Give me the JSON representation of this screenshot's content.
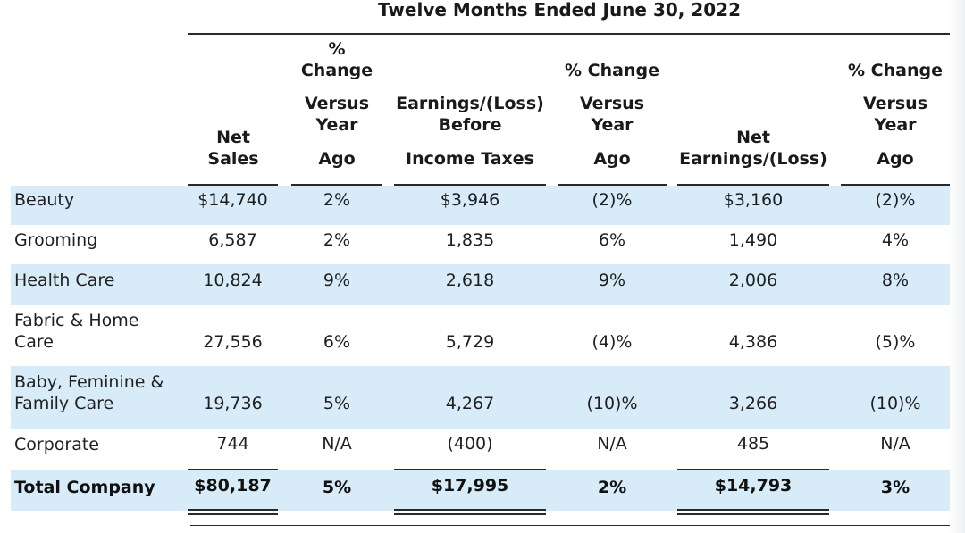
{
  "table": {
    "period_title": "Twelve Months Ended June 30, 2022",
    "headers": {
      "net_sales": [
        "Net",
        "Sales"
      ],
      "change_sales": [
        "%",
        "Change",
        "Versus",
        "Year",
        "Ago"
      ],
      "ebit": [
        "Earnings/(Loss)",
        "Before",
        "Income Taxes"
      ],
      "change_ebit": [
        "% Change",
        "Versus",
        "Year",
        "Ago"
      ],
      "net_earnings": [
        "Net",
        "Earnings/(Loss)"
      ],
      "change_earnings": [
        "% Change",
        "Versus",
        "Year",
        "Ago"
      ]
    },
    "rows": [
      {
        "segment": "Beauty",
        "net_sales": "$14,740",
        "change_sales": "2%",
        "ebit": "$3,946",
        "change_ebit": "(2)%",
        "net_earnings": "$3,160",
        "change_earnings": "(2)%"
      },
      {
        "segment": "Grooming",
        "net_sales": "6,587",
        "change_sales": "2%",
        "ebit": "1,835",
        "change_ebit": "6%",
        "net_earnings": "1,490",
        "change_earnings": "4%"
      },
      {
        "segment": "Health Care",
        "net_sales": "10,824",
        "change_sales": "9%",
        "ebit": "2,618",
        "change_ebit": "9%",
        "net_earnings": "2,006",
        "change_earnings": "8%"
      },
      {
        "segment": "Fabric & Home\nCare",
        "net_sales": "27,556",
        "change_sales": "6%",
        "ebit": "5,729",
        "change_ebit": "(4)%",
        "net_earnings": "4,386",
        "change_earnings": "(5)%"
      },
      {
        "segment": "Baby, Feminine &\nFamily Care",
        "net_sales": "19,736",
        "change_sales": "5%",
        "ebit": "4,267",
        "change_ebit": "(10)%",
        "net_earnings": "3,266",
        "change_earnings": "(10)%"
      },
      {
        "segment": "Corporate",
        "net_sales": "744",
        "change_sales": "N/A",
        "ebit": "(400)",
        "change_ebit": "N/A",
        "net_earnings": "485",
        "change_earnings": "N/A"
      }
    ],
    "total": {
      "segment": "Total Company",
      "net_sales": "$80,187",
      "change_sales": "5%",
      "ebit": "$17,995",
      "change_ebit": "2%",
      "net_earnings": "$14,793",
      "change_earnings": "3%"
    }
  }
}
